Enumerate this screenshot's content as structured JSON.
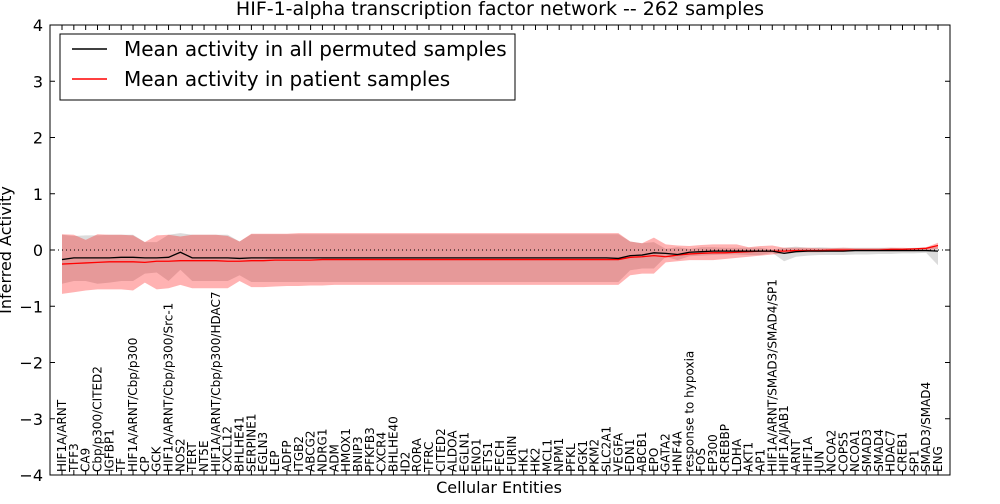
{
  "chart_data": {
    "type": "line",
    "title": "HIF-1-alpha transcription factor network -- 262 samples",
    "xlabel": "Cellular Entities",
    "ylabel": "Inferred Activity",
    "ylim": [
      -4,
      4
    ],
    "yticks": [
      4,
      3,
      2,
      1,
      0,
      -1,
      -2,
      -3,
      -4
    ],
    "reference_line": 0,
    "legend_position": "top-left",
    "categories": [
      "HIF1A/ARNT",
      "TFF3",
      "CA9",
      "Cbp/p300/CITED2",
      "IGFBP1",
      "TF",
      "HIF1A/ARNT/Cbp/p300",
      "CP",
      "GCK",
      "HIF1A/ARNT/Cbp/p300/Src-1",
      "NOS2",
      "TERT",
      "NT5E",
      "HIF1A/ARNT/Cbp/p300/HDAC7",
      "CXCL12",
      "BHLHE41",
      "SERPINE1",
      "EGLN3",
      "LEP",
      "ADFP",
      "ITGB2",
      "ABCG2",
      "NDRG1",
      "ADM",
      "HMOX1",
      "BNIP3",
      "PFKFB3",
      "CXCR4",
      "BHLHE40",
      "ID2",
      "RORA",
      "TFRC",
      "CITED2",
      "ALDOA",
      "EGLN1",
      "ENO1",
      "ETS1",
      "FECH",
      "FURIN",
      "HK1",
      "HK2",
      "MCL1",
      "NPM1",
      "PFKL",
      "PGK1",
      "PKM2",
      "SLC2A1",
      "VEGFA",
      "EDN1",
      "ABCB1",
      "EPO",
      "GATA2",
      "HNF4A",
      "response to hypoxia",
      "FOS",
      "EP300",
      "CREBBP",
      "LDHA",
      "AKT1",
      "AP1",
      "HIF1A/ARNT/SMAD3/SMAD4/SP1",
      "HIF1A/JAB1",
      "ARNT",
      "HIF1A",
      "JUN",
      "NCOA2",
      "COPS5",
      "NCOA1",
      "SMAD3",
      "SMAD4",
      "HDAC7",
      "CREB1",
      "SP1",
      "SMAD3/SMAD4",
      "ENG"
    ],
    "series": [
      {
        "name": "Mean activity in all permuted samples",
        "color": "#000000",
        "values": [
          -0.17,
          -0.14,
          -0.14,
          -0.14,
          -0.14,
          -0.13,
          -0.13,
          -0.14,
          -0.14,
          -0.13,
          -0.04,
          -0.14,
          -0.14,
          -0.14,
          -0.14,
          -0.15,
          -0.14,
          -0.14,
          -0.14,
          -0.14,
          -0.14,
          -0.14,
          -0.14,
          -0.14,
          -0.14,
          -0.14,
          -0.14,
          -0.14,
          -0.14,
          -0.14,
          -0.14,
          -0.14,
          -0.14,
          -0.14,
          -0.14,
          -0.14,
          -0.14,
          -0.14,
          -0.14,
          -0.14,
          -0.14,
          -0.14,
          -0.14,
          -0.14,
          -0.14,
          -0.14,
          -0.14,
          -0.15,
          -0.1,
          -0.09,
          -0.05,
          -0.06,
          -0.08,
          -0.04,
          -0.03,
          -0.02,
          -0.02,
          -0.02,
          -0.02,
          -0.02,
          -0.02,
          -0.06,
          -0.03,
          -0.02,
          -0.02,
          -0.02,
          -0.02,
          -0.01,
          -0.01,
          -0.01,
          -0.01,
          -0.01,
          -0.01,
          -0.01,
          -0.02
        ],
        "upper": [
          0.27,
          0.25,
          0.26,
          0.26,
          0.27,
          0.27,
          0.27,
          0.14,
          0.14,
          0.27,
          0.3,
          0.27,
          0.27,
          0.27,
          0.27,
          0.15,
          0.28,
          0.28,
          0.28,
          0.28,
          0.28,
          0.28,
          0.28,
          0.28,
          0.28,
          0.28,
          0.28,
          0.28,
          0.28,
          0.28,
          0.28,
          0.28,
          0.28,
          0.28,
          0.28,
          0.28,
          0.28,
          0.28,
          0.28,
          0.28,
          0.28,
          0.28,
          0.28,
          0.28,
          0.28,
          0.28,
          0.28,
          0.28,
          0.15,
          0.12,
          0.14,
          0.02,
          0.05,
          0.02,
          0.05,
          0.05,
          0.04,
          0.04,
          0.04,
          0.04,
          0.01,
          0.04,
          0.06,
          0.04,
          0.05,
          0.04,
          0.04,
          0.04,
          0.04,
          0.04,
          0.04,
          0.03,
          0.04,
          0.04,
          0.06
        ],
        "lower": [
          -0.6,
          -0.55,
          -0.55,
          -0.6,
          -0.58,
          -0.55,
          -0.55,
          -0.42,
          -0.4,
          -0.55,
          -0.35,
          -0.55,
          -0.55,
          -0.55,
          -0.55,
          -0.45,
          -0.57,
          -0.57,
          -0.57,
          -0.57,
          -0.57,
          -0.57,
          -0.57,
          -0.57,
          -0.57,
          -0.57,
          -0.57,
          -0.57,
          -0.57,
          -0.57,
          -0.57,
          -0.57,
          -0.57,
          -0.57,
          -0.57,
          -0.57,
          -0.57,
          -0.57,
          -0.57,
          -0.57,
          -0.57,
          -0.57,
          -0.57,
          -0.57,
          -0.57,
          -0.57,
          -0.57,
          -0.57,
          -0.36,
          -0.33,
          -0.33,
          -0.12,
          -0.18,
          -0.11,
          -0.1,
          -0.09,
          -0.08,
          -0.08,
          -0.09,
          -0.09,
          -0.05,
          -0.2,
          -0.12,
          -0.1,
          -0.09,
          -0.09,
          -0.09,
          -0.08,
          -0.08,
          -0.07,
          -0.07,
          -0.06,
          -0.06,
          -0.05,
          -0.27
        ]
      },
      {
        "name": "Mean activity in patient samples",
        "color": "#ff0000",
        "values": [
          -0.25,
          -0.24,
          -0.23,
          -0.22,
          -0.21,
          -0.21,
          -0.21,
          -0.22,
          -0.2,
          -0.2,
          -0.19,
          -0.19,
          -0.19,
          -0.19,
          -0.2,
          -0.2,
          -0.19,
          -0.19,
          -0.18,
          -0.18,
          -0.18,
          -0.18,
          -0.17,
          -0.17,
          -0.17,
          -0.17,
          -0.17,
          -0.17,
          -0.17,
          -0.17,
          -0.17,
          -0.17,
          -0.17,
          -0.17,
          -0.17,
          -0.17,
          -0.17,
          -0.17,
          -0.17,
          -0.17,
          -0.17,
          -0.17,
          -0.17,
          -0.17,
          -0.17,
          -0.17,
          -0.17,
          -0.17,
          -0.13,
          -0.12,
          -0.1,
          -0.12,
          -0.09,
          -0.07,
          -0.06,
          -0.05,
          -0.05,
          -0.04,
          -0.03,
          -0.02,
          -0.02,
          -0.02,
          -0.01,
          -0.01,
          -0.01,
          0.0,
          0.0,
          0.0,
          0.0,
          0.0,
          0.01,
          0.01,
          0.02,
          0.03,
          0.08
        ],
        "upper": [
          0.28,
          0.27,
          0.18,
          0.28,
          0.27,
          0.27,
          0.26,
          0.14,
          0.26,
          0.27,
          0.24,
          0.27,
          0.27,
          0.27,
          0.25,
          0.15,
          0.29,
          0.29,
          0.29,
          0.29,
          0.3,
          0.3,
          0.3,
          0.3,
          0.3,
          0.3,
          0.3,
          0.3,
          0.3,
          0.3,
          0.3,
          0.3,
          0.3,
          0.3,
          0.3,
          0.3,
          0.3,
          0.3,
          0.3,
          0.3,
          0.3,
          0.3,
          0.3,
          0.3,
          0.3,
          0.3,
          0.3,
          0.3,
          0.15,
          0.12,
          0.22,
          0.1,
          0.08,
          0.07,
          0.09,
          0.1,
          0.1,
          0.1,
          0.05,
          0.07,
          0.08,
          0.04,
          0.04,
          0.04,
          0.03,
          0.03,
          0.04,
          0.03,
          0.03,
          0.03,
          0.04,
          0.04,
          0.03,
          0.05,
          0.13
        ],
        "lower": [
          -0.78,
          -0.75,
          -0.72,
          -0.7,
          -0.7,
          -0.7,
          -0.72,
          -0.58,
          -0.7,
          -0.68,
          -0.62,
          -0.68,
          -0.68,
          -0.68,
          -0.68,
          -0.55,
          -0.66,
          -0.66,
          -0.65,
          -0.64,
          -0.64,
          -0.63,
          -0.63,
          -0.62,
          -0.62,
          -0.62,
          -0.62,
          -0.62,
          -0.62,
          -0.62,
          -0.62,
          -0.62,
          -0.62,
          -0.62,
          -0.62,
          -0.62,
          -0.62,
          -0.62,
          -0.62,
          -0.62,
          -0.62,
          -0.62,
          -0.62,
          -0.62,
          -0.62,
          -0.62,
          -0.62,
          -0.62,
          -0.45,
          -0.42,
          -0.42,
          -0.22,
          -0.2,
          -0.18,
          -0.18,
          -0.18,
          -0.16,
          -0.14,
          -0.12,
          -0.1,
          -0.08,
          -0.06,
          -0.04,
          -0.04,
          -0.04,
          -0.03,
          -0.03,
          -0.02,
          -0.02,
          -0.02,
          -0.02,
          -0.02,
          -0.02,
          -0.01,
          0.02
        ]
      }
    ]
  }
}
